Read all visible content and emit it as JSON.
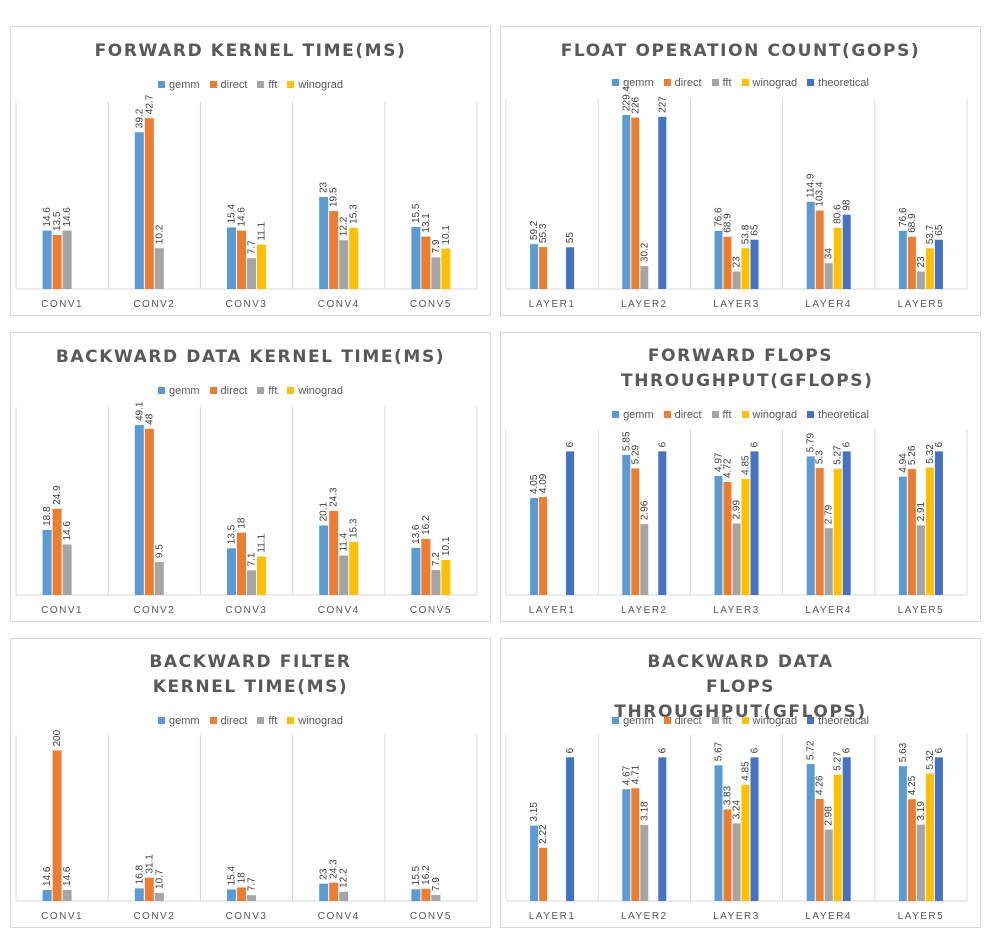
{
  "colors": {
    "gemm": "#5b9bd5",
    "direct": "#ed7d31",
    "fft": "#a5a5a5",
    "winograd": "#ffc000",
    "theoretical": "#4472c4"
  },
  "chart_data": [
    {
      "type": "bar",
      "title": "FORWARD KERNEL TIME(MS)",
      "categories": [
        "CONV1",
        "CONV2",
        "CONV3",
        "CONV4",
        "CONV5"
      ],
      "series": [
        {
          "name": "gemm",
          "values": [
            14.6,
            39.2,
            15.4,
            23,
            15.5
          ]
        },
        {
          "name": "direct",
          "values": [
            13.5,
            42.7,
            14.6,
            19.5,
            13.1
          ]
        },
        {
          "name": "fft",
          "values": [
            14.6,
            10.2,
            7.7,
            12.2,
            7.9
          ]
        },
        {
          "name": "winograd",
          "values": [
            null,
            null,
            11.1,
            15.3,
            10.1
          ]
        }
      ],
      "ylim": [
        0,
        45
      ],
      "grid": false,
      "legend": "top"
    },
    {
      "type": "bar",
      "title": "FLOAT OPERATION COUNT(GOPS)",
      "categories": [
        "LAYER1",
        "LAYER2",
        "LAYER3",
        "LAYER4",
        "LAYER5"
      ],
      "series": [
        {
          "name": "gemm",
          "values": [
            59.2,
            229.4,
            76.6,
            114.9,
            76.6
          ]
        },
        {
          "name": "direct",
          "values": [
            55.3,
            226,
            68.9,
            103.4,
            68.9
          ]
        },
        {
          "name": "fft",
          "values": [
            null,
            30.2,
            23,
            34,
            23
          ]
        },
        {
          "name": "winograd",
          "values": [
            null,
            null,
            53.8,
            80.6,
            53.7
          ]
        },
        {
          "name": "theoretical",
          "values": [
            55,
            227,
            65,
            98,
            65
          ]
        }
      ],
      "ylim": [
        0,
        240
      ],
      "grid": false,
      "legend": "top"
    },
    {
      "type": "bar",
      "title": "BACKWARD DATA KERNEL TIME(MS)",
      "categories": [
        "CONV1",
        "CONV2",
        "CONV3",
        "CONV4",
        "CONV5"
      ],
      "series": [
        {
          "name": "gemm",
          "values": [
            18.8,
            49.1,
            13.5,
            20.1,
            13.6
          ]
        },
        {
          "name": "direct",
          "values": [
            24.9,
            48,
            18,
            24.3,
            16.2
          ]
        },
        {
          "name": "fft",
          "values": [
            14.6,
            9.5,
            7.1,
            11.4,
            7.2
          ]
        },
        {
          "name": "winograd",
          "values": [
            null,
            null,
            11.1,
            15.3,
            10.1
          ]
        }
      ],
      "ylim": [
        0,
        52
      ],
      "grid": false,
      "legend": "top"
    },
    {
      "type": "bar",
      "title": "FORWARD FLOPS THROUGHPUT(GFLOPS)",
      "categories": [
        "LAYER1",
        "LAYER2",
        "LAYER3",
        "LAYER4",
        "LAYER5"
      ],
      "series": [
        {
          "name": "gemm",
          "values": [
            4.05,
            5.85,
            4.97,
            5.79,
            4.94
          ]
        },
        {
          "name": "direct",
          "values": [
            4.09,
            5.29,
            4.72,
            5.3,
            5.26
          ]
        },
        {
          "name": "fft",
          "values": [
            null,
            2.96,
            2.99,
            2.79,
            2.91
          ]
        },
        {
          "name": "winograd",
          "values": [
            null,
            null,
            4.85,
            5.27,
            5.32
          ]
        },
        {
          "name": "theoretical",
          "values": [
            6,
            6,
            6,
            6,
            6
          ]
        }
      ],
      "ylim": [
        0,
        6.6
      ],
      "grid": false,
      "legend": "top"
    },
    {
      "type": "bar",
      "title": "BACKWARD FILTER KERNEL TIME(MS)",
      "categories": [
        "CONV1",
        "CONV2",
        "CONV3",
        "CONV4",
        "CONV5"
      ],
      "series": [
        {
          "name": "gemm",
          "values": [
            14.6,
            16.8,
            15.4,
            23,
            15.5
          ]
        },
        {
          "name": "direct",
          "values": [
            200,
            31.1,
            18,
            24.3,
            16.2
          ]
        },
        {
          "name": "fft",
          "values": [
            14.6,
            10.7,
            7.7,
            12.2,
            7.9
          ]
        },
        {
          "name": "winograd",
          "values": [
            null,
            null,
            null,
            null,
            null
          ]
        }
      ],
      "ylim": [
        0,
        210
      ],
      "grid": false,
      "legend": "top"
    },
    {
      "type": "bar",
      "title": "BACKWARD DATA FLOPS THROUGHPUT(GFLOPS)",
      "categories": [
        "LAYER1",
        "LAYER2",
        "LAYER3",
        "LAYER4",
        "LAYER5"
      ],
      "series": [
        {
          "name": "gemm",
          "values": [
            3.15,
            4.67,
            5.67,
            5.72,
            5.63
          ]
        },
        {
          "name": "direct",
          "values": [
            2.22,
            4.71,
            3.83,
            4.26,
            4.25
          ]
        },
        {
          "name": "fft",
          "values": [
            null,
            3.18,
            3.24,
            2.98,
            3.19
          ]
        },
        {
          "name": "winograd",
          "values": [
            null,
            null,
            4.85,
            5.27,
            5.32
          ]
        },
        {
          "name": "theoretical",
          "values": [
            6,
            6,
            6,
            6,
            6
          ]
        }
      ],
      "ylim": [
        0,
        6.6
      ],
      "grid": false,
      "legend": "top"
    }
  ]
}
